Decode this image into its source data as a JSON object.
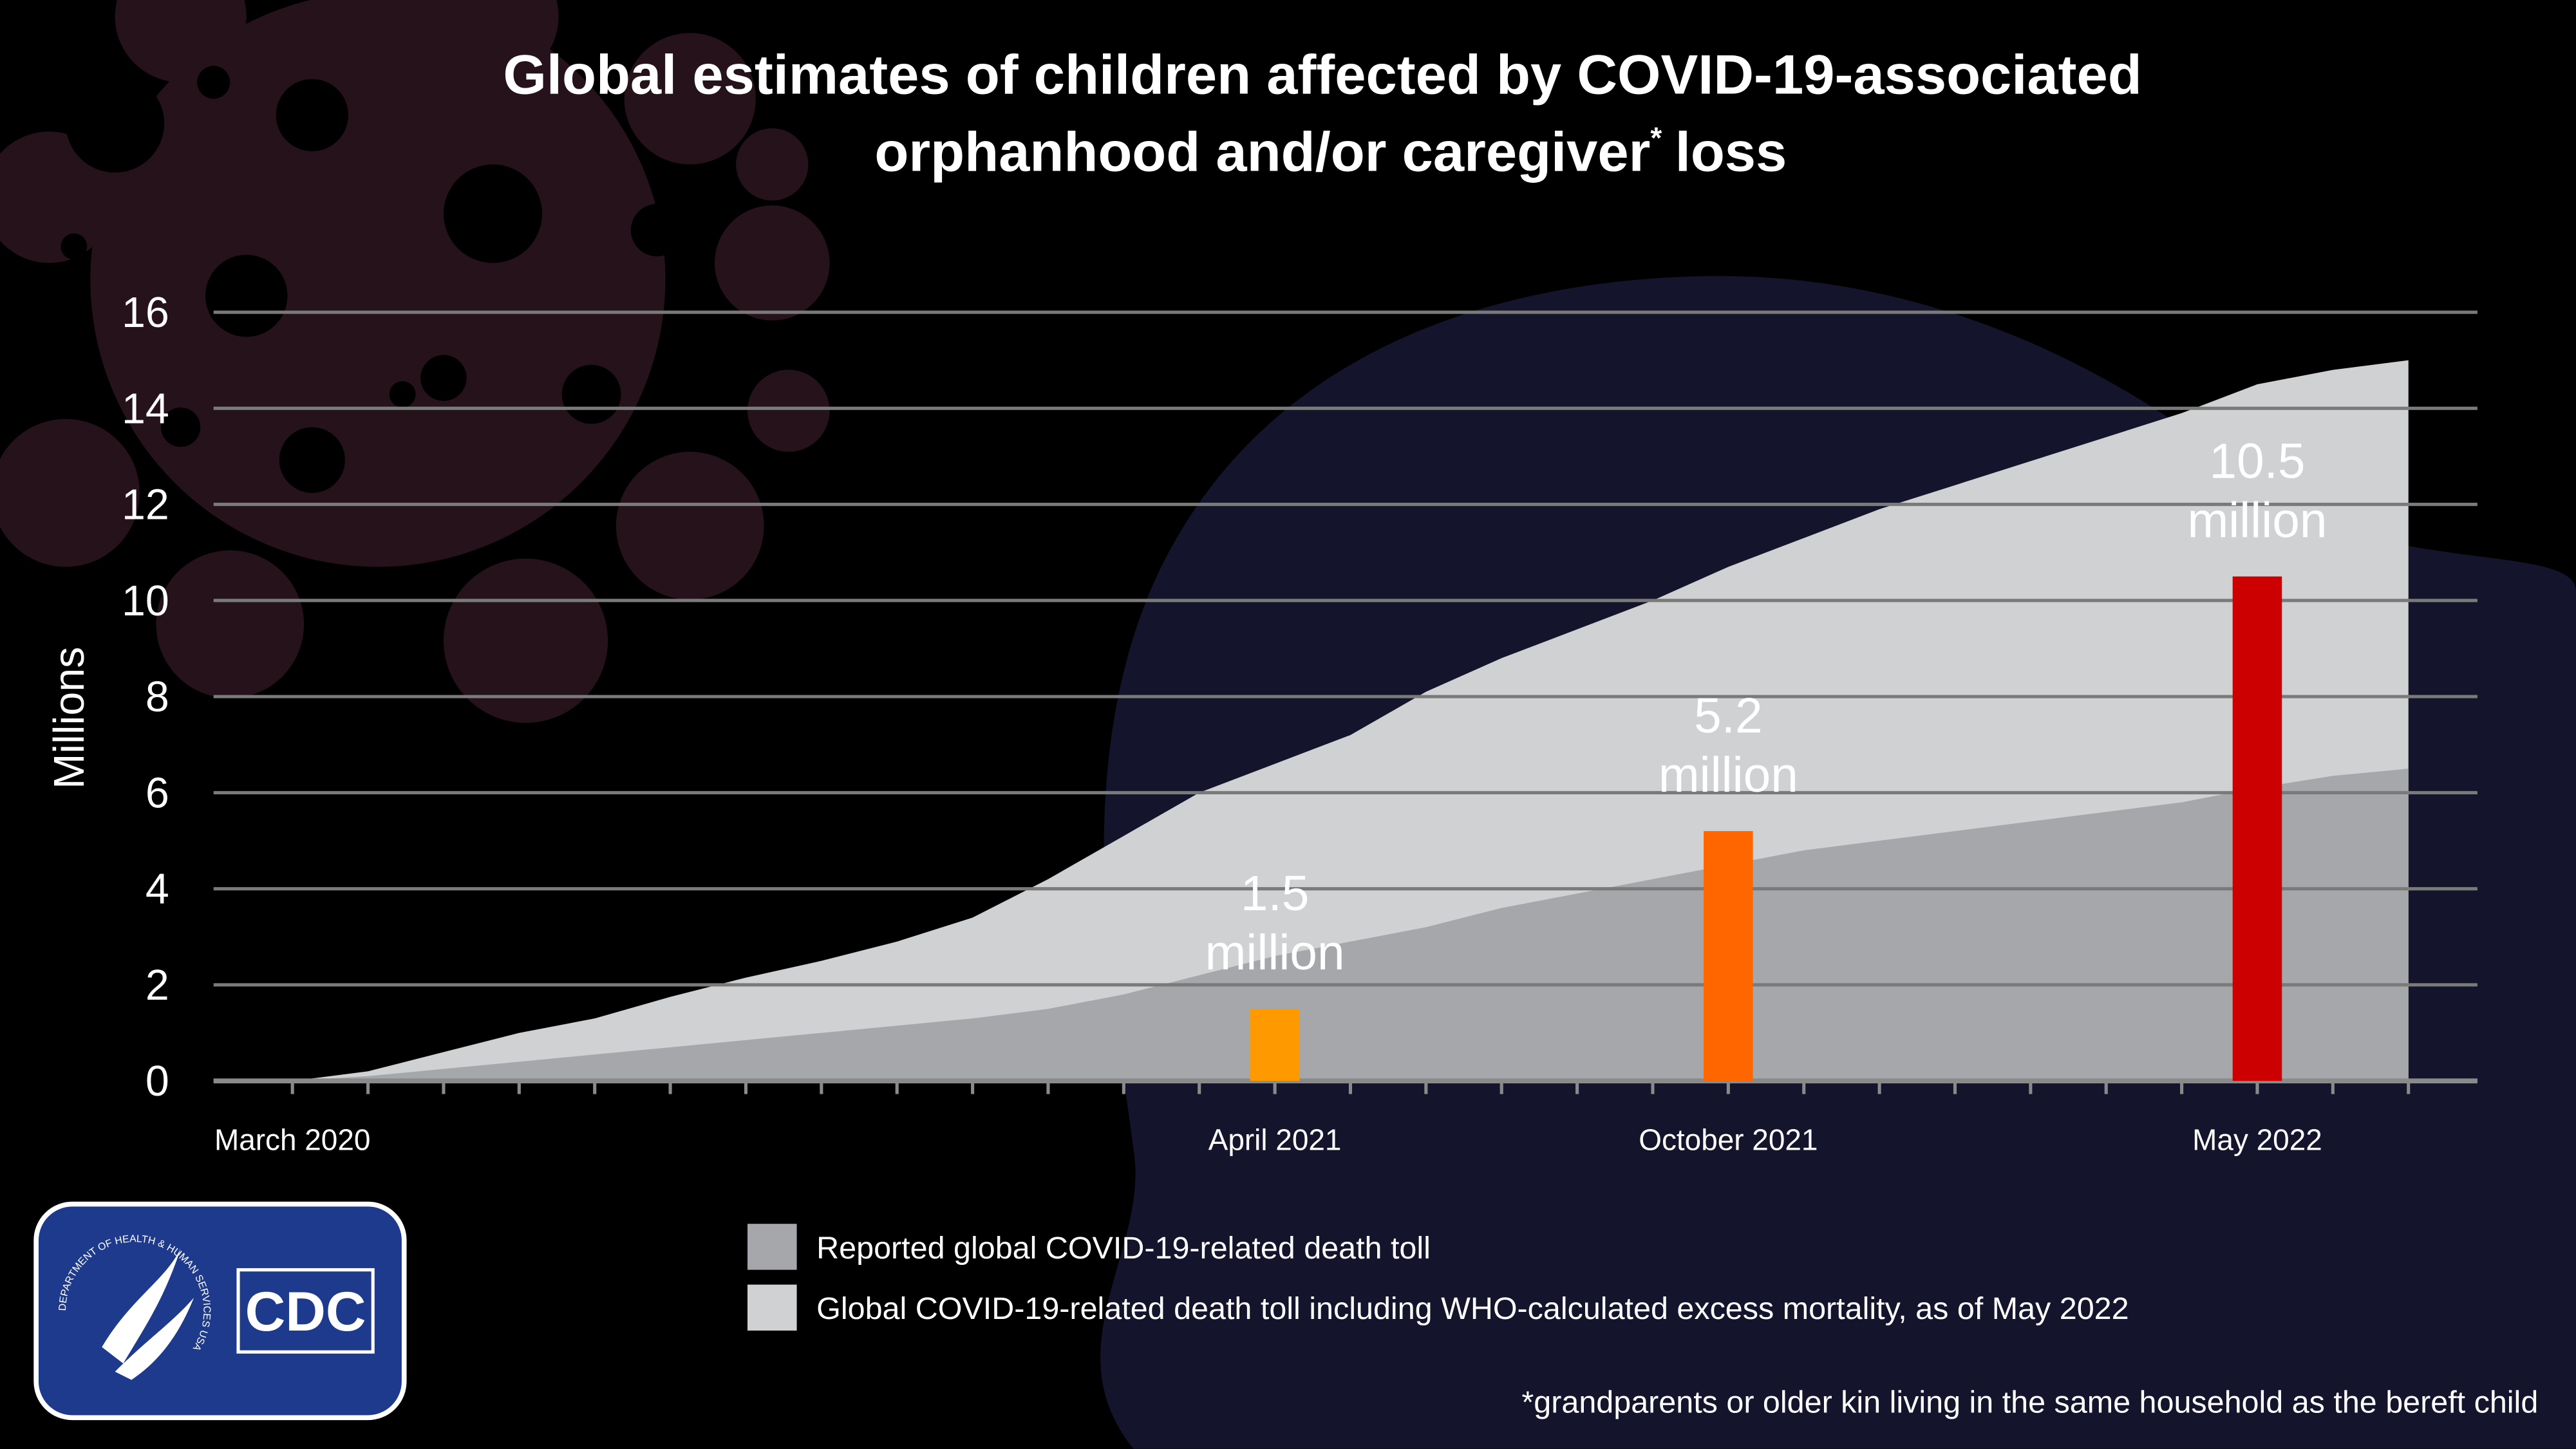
{
  "chart_data": {
    "type": "area",
    "title": [
      "Global estimates of children affected by COVID-19-associated",
      "orphanhood and/or caregiver",
      "*",
      "loss"
    ],
    "y_label": "Millions",
    "categories": [
      "March 2020",
      null,
      null,
      null,
      null,
      null,
      null,
      null,
      null,
      null,
      null,
      null,
      null,
      "April 2021",
      null,
      null,
      null,
      null,
      null,
      "October 2021",
      null,
      null,
      null,
      null,
      null,
      null,
      "May 2022",
      null,
      null
    ],
    "ylim": [
      0,
      16
    ],
    "yticks": [
      0,
      2,
      4,
      6,
      8,
      10,
      12,
      14,
      16
    ],
    "grid": true,
    "series": [
      {
        "name": "Global COVID-19-related death toll including WHO-calculated excess mortality, as of May 2022",
        "color": "#d0d1d3",
        "values": [
          0,
          0.2,
          0.6,
          1.0,
          1.3,
          1.75,
          2.15,
          2.5,
          2.9,
          3.4,
          4.2,
          5.1,
          6.0,
          6.6,
          7.2,
          8.1,
          8.8,
          9.4,
          10.0,
          10.7,
          11.3,
          11.9,
          12.4,
          12.9,
          13.4,
          13.9,
          14.5,
          14.8,
          15.0
        ]
      },
      {
        "name": "Reported global COVID-19-related death toll",
        "color": "#a6a7aa",
        "values": [
          0,
          0.1,
          0.25,
          0.4,
          0.55,
          0.7,
          0.85,
          1.0,
          1.15,
          1.3,
          1.5,
          1.8,
          2.2,
          2.6,
          2.9,
          3.2,
          3.6,
          3.9,
          4.2,
          4.5,
          4.8,
          5.0,
          5.2,
          5.4,
          5.6,
          5.8,
          6.1,
          6.35,
          6.5
        ]
      }
    ],
    "bars": {
      "x": [
        "April 2021",
        "October 2021",
        "May 2022"
      ],
      "values": [
        1.5,
        5.2,
        10.5
      ],
      "value_labels": [
        [
          "1.5",
          "million"
        ],
        [
          "5.2",
          "million"
        ],
        [
          "10.5",
          "million"
        ]
      ],
      "colors": [
        "#ff9900",
        "#ff6600",
        "#cc0000"
      ]
    },
    "footnote": "*grandparents or older kin living in the same household as the bereft child"
  },
  "logo": {
    "seal_text": "DEPARTMENT OF HEALTH & HUMAN SERVICES USA",
    "agency": "CDC"
  }
}
